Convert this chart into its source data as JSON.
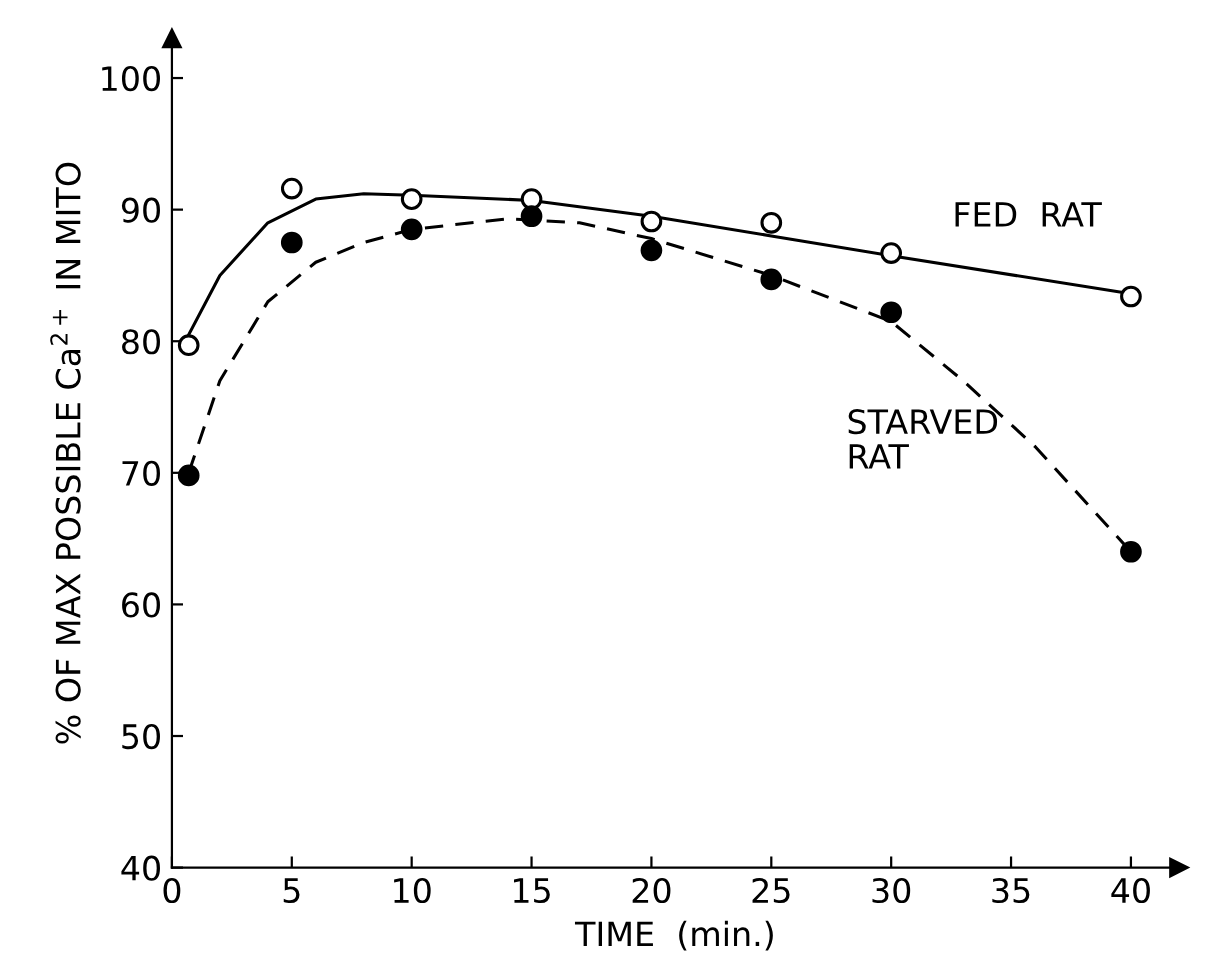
{
  "chart_data": {
    "type": "scatter",
    "xlabel": "TIME  (min.)",
    "ylabel": "% OF MAX POSSIBLE Ca$^{2+}$ IN MITO",
    "xlim": [
      0,
      42
    ],
    "ylim": [
      40,
      103
    ],
    "xticks": [
      0,
      5,
      10,
      15,
      20,
      25,
      30,
      35,
      40
    ],
    "yticks": [
      40,
      50,
      60,
      70,
      80,
      90,
      100
    ],
    "grid": false,
    "legend": false,
    "series": [
      {
        "type": "line",
        "name": "FED  RAT",
        "color": "#000000",
        "marker": "none",
        "line_style": "solid",
        "x": [
          0.7,
          2,
          4,
          6,
          8,
          10,
          15,
          20,
          25,
          30,
          40
        ],
        "values": [
          80.5,
          85,
          89,
          90.8,
          91.2,
          91.1,
          90.7,
          89.5,
          88,
          86.5,
          83.6
        ]
      },
      {
        "type": "line",
        "name": "STARVED\nRAT",
        "color": "#000000",
        "marker": "none",
        "line_style": "dashed",
        "x": [
          0.7,
          2,
          4,
          6,
          8,
          10,
          14,
          17,
          20,
          25,
          30,
          33,
          36,
          40
        ],
        "values": [
          70,
          77,
          83,
          86,
          87.5,
          88.5,
          89.3,
          89,
          87.8,
          85,
          81.5,
          77,
          72,
          64
        ]
      },
      {
        "color": "#ffffff",
        "marker": "circle",
        "x": [
          0.7,
          5,
          10,
          15,
          20,
          25,
          30,
          40
        ],
        "values": [
          79.7,
          91.6,
          90.8,
          90.8,
          89.1,
          89.0,
          86.7,
          83.4
        ]
      },
      {
        "color": "#000000",
        "marker": "circle",
        "x": [
          0.7,
          5,
          10,
          15,
          20,
          25,
          30,
          40
        ],
        "values": [
          69.8,
          87.5,
          88.5,
          89.5,
          86.9,
          84.7,
          82.2,
          64.0
        ]
      }
    ]
  }
}
